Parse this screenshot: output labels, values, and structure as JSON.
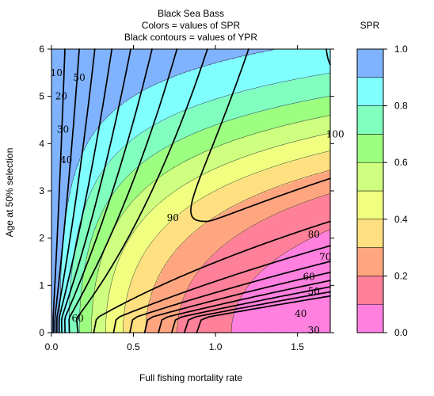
{
  "chart_data": {
    "type": "contour",
    "title_lines": [
      "Black Sea Bass",
      "Colors = values of SPR",
      "Black contours = values of YPR"
    ],
    "xlabel": "Full fishing mortality rate",
    "ylabel": "Age at 50% selection",
    "xlim": [
      0,
      1.7
    ],
    "ylim": [
      0,
      6
    ],
    "x_ticks": [
      "0.0",
      "0.5",
      "1.0",
      "1.5"
    ],
    "y_ticks": [
      "0",
      "1",
      "2",
      "3",
      "4",
      "5",
      "6"
    ],
    "legend": {
      "title": "SPR",
      "placement": "right",
      "breaks": [
        0.0,
        0.1,
        0.2,
        0.3,
        0.4,
        0.5,
        0.6,
        0.7,
        0.8,
        0.9,
        1.0
      ],
      "tick_labels": [
        "0.0",
        "0.2",
        "0.4",
        "0.6",
        "0.8",
        "1.0"
      ],
      "colors": [
        "#ff80df",
        "#ff8099",
        "#ffa680",
        "#ffe080",
        "#f0ff80",
        "#cfff80",
        "#9cff80",
        "#80ffbf",
        "#80ffff",
        "#80b3ff"
      ]
    },
    "spr_model": {
      "age_shift": 3.3,
      "shape": 2.1
    },
    "ypr_contours": [
      {
        "level": 10,
        "label": "10"
      },
      {
        "level": 20,
        "label": "20"
      },
      {
        "level": 30,
        "label": "30"
      },
      {
        "level": 40,
        "label": "40"
      },
      {
        "level": 50,
        "label": "50"
      },
      {
        "level": 60,
        "label": "60"
      },
      {
        "level": 70,
        "label": "70"
      },
      {
        "level": 80,
        "label": "80"
      },
      {
        "level": 90,
        "label": "90"
      },
      {
        "level": 100,
        "label": "100"
      }
    ],
    "ypr_label_points": [
      {
        "label": "10",
        "x": 0.03,
        "y": 5.5
      },
      {
        "label": "20",
        "x": 0.06,
        "y": 5.0
      },
      {
        "label": "30",
        "x": 0.07,
        "y": 4.3
      },
      {
        "label": "40",
        "x": 0.09,
        "y": 3.65
      },
      {
        "label": "50",
        "x": 0.17,
        "y": 5.4
      },
      {
        "label": "60",
        "x": 0.16,
        "y": 0.3
      },
      {
        "label": "90",
        "x": 0.74,
        "y": 2.43
      },
      {
        "label": "80",
        "x": 1.6,
        "y": 2.08
      },
      {
        "label": "70",
        "x": 1.67,
        "y": 1.6
      },
      {
        "label": "60",
        "x": 1.57,
        "y": 1.18
      },
      {
        "label": "50",
        "x": 1.6,
        "y": 0.87
      },
      {
        "label": "40",
        "x": 1.52,
        "y": 0.4
      },
      {
        "label": "30",
        "x": 1.6,
        "y": 0.05
      },
      {
        "label": "100",
        "x": 1.73,
        "y": 4.2
      }
    ]
  }
}
